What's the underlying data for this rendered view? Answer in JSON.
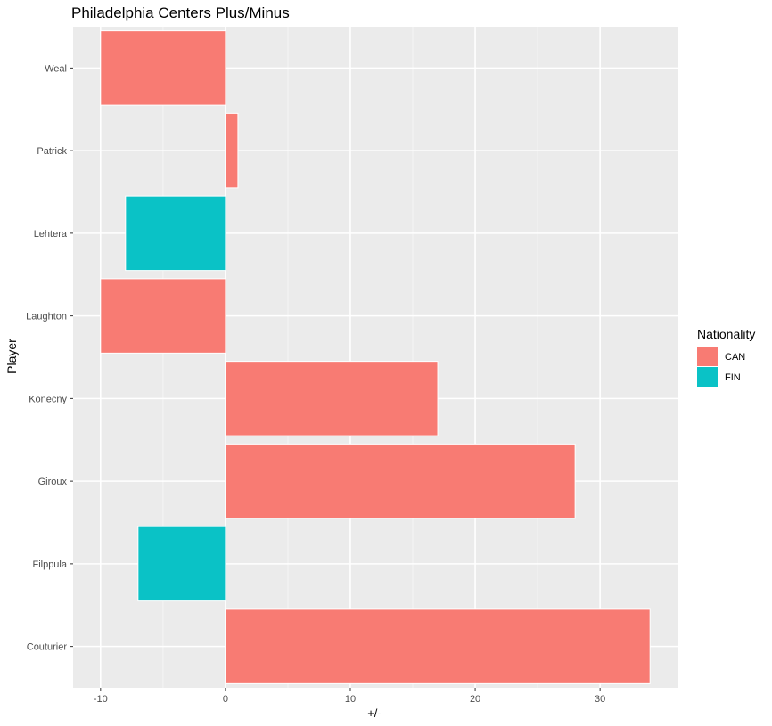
{
  "chart_data": {
    "type": "bar",
    "orientation": "horizontal",
    "title": "Philadelphia Centers Plus/Minus",
    "xlabel": "+/-",
    "ylabel": "Player",
    "xlim": [
      -12.2,
      36.2
    ],
    "x_ticks": [
      -10,
      0,
      10,
      20,
      30
    ],
    "grid": true,
    "legend": {
      "title": "Nationality",
      "position": "right",
      "entries": [
        {
          "label": "CAN",
          "color": "#F8766D"
        },
        {
          "label": "FIN",
          "color": "#00BFC4"
        }
      ]
    },
    "categories": [
      "Couturier",
      "Filppula",
      "Giroux",
      "Konecny",
      "Laughton",
      "Lehtera",
      "Patrick",
      "Weal"
    ],
    "values": [
      34,
      -7,
      28,
      17,
      -10,
      -8,
      1,
      -10
    ],
    "nationality": [
      "CAN",
      "FIN",
      "CAN",
      "CAN",
      "CAN",
      "FIN",
      "CAN",
      "CAN"
    ]
  },
  "colors": {
    "panel_background": "#EBEBEB",
    "grid_major": "#FFFFFF",
    "grid_minor": "#F5F5F5",
    "bar_alpha": 0.96
  }
}
